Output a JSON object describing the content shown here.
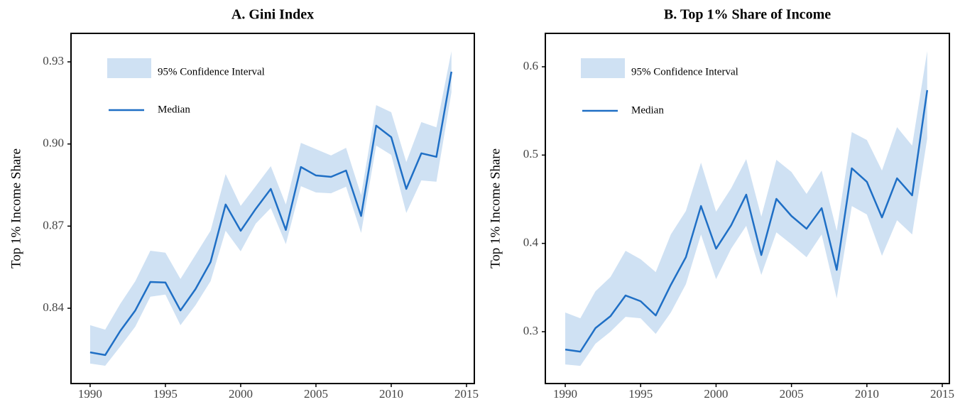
{
  "chart_data": [
    {
      "type": "line",
      "title": "A.  Gini Index",
      "ylabel": "Top 1% Income Share",
      "x": [
        1990,
        1991,
        1992,
        1993,
        1994,
        1995,
        1996,
        1997,
        1998,
        1999,
        2000,
        2001,
        2002,
        2003,
        2004,
        2005,
        2006,
        2007,
        2008,
        2009,
        2010,
        2011,
        2012,
        2013,
        2014
      ],
      "xlim": [
        1988.73,
        2015.52
      ],
      "xticks": [
        1990,
        1995,
        2000,
        2005,
        2010,
        2015
      ],
      "ylim": [
        0.8125,
        0.9404
      ],
      "yticks": [
        0.84,
        0.87,
        {
          "value": 0.9,
          "label": "0.90"
        },
        0.93
      ],
      "series": [
        {
          "name": "95% Confidence Interval",
          "type": "band",
          "color": "#cfe1f3",
          "upper": [
            0.8338,
            0.8322,
            0.8416,
            0.8499,
            0.861,
            0.8603,
            0.8507,
            0.8595,
            0.8683,
            0.889,
            0.8774,
            0.8846,
            0.8919,
            0.8779,
            0.9004,
            0.8981,
            0.8958,
            0.8986,
            0.8813,
            0.9142,
            0.9116,
            0.8934,
            0.908,
            0.9061,
            0.9339
          ],
          "lower": [
            0.8198,
            0.819,
            0.826,
            0.8333,
            0.8442,
            0.845,
            0.8338,
            0.8411,
            0.8499,
            0.8683,
            0.8608,
            0.8709,
            0.8766,
            0.8634,
            0.8846,
            0.8823,
            0.882,
            0.8844,
            0.8675,
            0.8994,
            0.896,
            0.8748,
            0.8867,
            0.8862,
            0.9189
          ]
        },
        {
          "name": "Median",
          "color": "#1f6fc5",
          "values": [
            0.8239,
            0.8229,
            0.8317,
            0.8392,
            0.8496,
            0.8494,
            0.8392,
            0.847,
            0.8569,
            0.8779,
            0.8683,
            0.8763,
            0.8836,
            0.8686,
            0.8916,
            0.8885,
            0.888,
            0.8903,
            0.8737,
            0.9067,
            0.9025,
            0.8836,
            0.8966,
            0.8953,
            0.9264
          ]
        }
      ]
    },
    {
      "type": "line",
      "title": "B.  Top 1% Share of Income",
      "ylabel": "Top 1% Income Share",
      "x": [
        1990,
        1991,
        1992,
        1993,
        1994,
        1995,
        1996,
        1997,
        1998,
        1999,
        2000,
        2001,
        2002,
        2003,
        2004,
        2005,
        2006,
        2007,
        2008,
        2009,
        2010,
        2011,
        2012,
        2013,
        2014
      ],
      "xlim": [
        1988.68,
        2015.47
      ],
      "xticks": [
        1990,
        1995,
        2000,
        2005,
        2010,
        2015
      ],
      "ylim": [
        0.2413,
        0.6378
      ],
      "yticks": [
        0.3,
        0.4,
        0.5,
        0.6
      ],
      "series": [
        {
          "name": "95% Confidence Interval",
          "type": "band",
          "color": "#cfe1f3",
          "upper": [
            0.3217,
            0.3152,
            0.3458,
            0.3619,
            0.3916,
            0.382,
            0.3675,
            0.4101,
            0.4367,
            0.4914,
            0.4359,
            0.4624,
            0.4954,
            0.4303,
            0.4946,
            0.4809,
            0.456,
            0.4825,
            0.4142,
            0.526,
            0.5171,
            0.4825,
            0.5316,
            0.5107,
            0.6177
          ],
          "lower": [
            0.2629,
            0.2613,
            0.2863,
            0.3,
            0.3168,
            0.3152,
            0.2975,
            0.3217,
            0.3538,
            0.4101,
            0.3595,
            0.394,
            0.4198,
            0.3643,
            0.4125,
            0.3989,
            0.3844,
            0.4101,
            0.3377,
            0.4423,
            0.4327,
            0.386,
            0.4262,
            0.4101,
            0.5187
          ]
        },
        {
          "name": "Median",
          "color": "#1f6fc5",
          "values": [
            0.2798,
            0.2774,
            0.304,
            0.3176,
            0.341,
            0.3345,
            0.3184,
            0.353,
            0.3844,
            0.4423,
            0.394,
            0.4205,
            0.4552,
            0.3868,
            0.4504,
            0.431,
            0.4166,
            0.4399,
            0.37,
            0.485,
            0.4697,
            0.4294,
            0.4737,
            0.4544,
            0.5735
          ]
        }
      ]
    }
  ]
}
